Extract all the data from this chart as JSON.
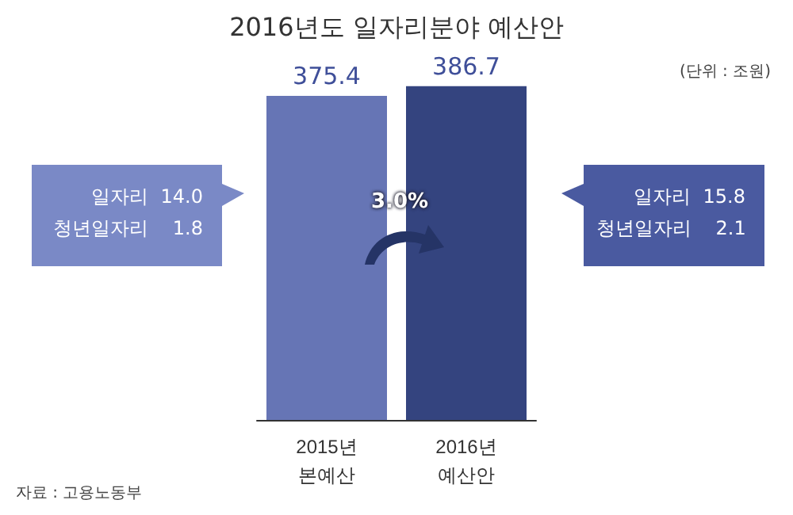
{
  "chart_data": {
    "type": "bar",
    "title": "2016년도 일자리분야 예산안",
    "categories": [
      "2015년\n본예산",
      "2016년\n예산안"
    ],
    "values": [
      375.4,
      386.7
    ],
    "colors": [
      "#6675b5",
      "#34447f"
    ],
    "data_labels": true,
    "annotations": [
      "(단위 : 조원)",
      "일자리  14.0",
      "청년일자리    1.8",
      "일자리  15.8",
      "청년일자리    2.1",
      "3.0%",
      "자료 : 고용노동부"
    ]
  }
}
